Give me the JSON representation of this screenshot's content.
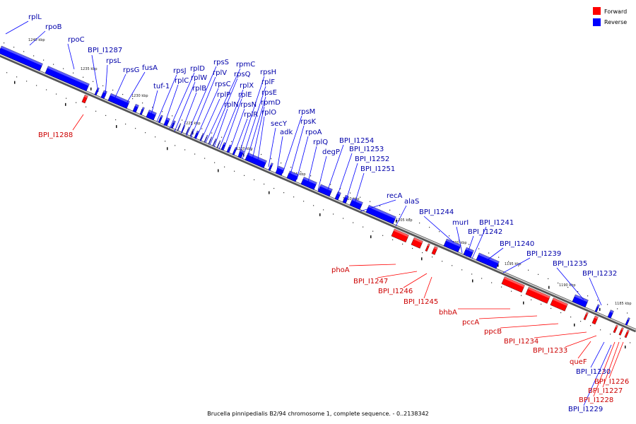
{
  "legend": {
    "forward_label": "Forward",
    "reverse_label": "Reverse",
    "forward_color": "#ff0000",
    "reverse_color": "#0000ff"
  },
  "caption": "Brucella pinnipedialis B2/94 chromosome 1, complete sequence. - 0..2138342",
  "scale_ticks": [
    "1240 kbp",
    "1235 kbp",
    "1230 kbp",
    "1225 kbp",
    "1220 kbp",
    "1215 kbp",
    "1210 kbp",
    "1205 kbp",
    "1200 kbp",
    "1195 kbp",
    "1190 kbp",
    "1185 kbp"
  ],
  "genes_reverse": [
    "rplL",
    "rpoB",
    "rpoC",
    "BPI_I1287",
    "rpsL",
    "rpsG",
    "fusA",
    "tuf-1",
    "rpsJ",
    "rplC",
    "rplD",
    "rplW",
    "rplB",
    "rpsS",
    "rplV",
    "rpsC",
    "rplP",
    "rpmC",
    "rpsQ",
    "rplN",
    "rplX",
    "rplE",
    "rpsN",
    "rplR",
    "rpsH",
    "rplF",
    "rpsE",
    "rpmD",
    "rplO",
    "secY",
    "adk",
    "rpsM",
    "rpsK",
    "rpoA",
    "rplQ",
    "degP",
    "BPI_I1254",
    "BPI_I1253",
    "BPI_I1252",
    "BPI_I1251",
    "recA",
    "alaS",
    "BPI_I1244",
    "murI",
    "BPI_I1241",
    "BPI_I1242",
    "BPI_I1240",
    "BPI_I1239",
    "BPI_I1235",
    "BPI_I1232",
    "BPI_I1230",
    "BPI_I1229"
  ],
  "genes_forward": [
    "BPI_I1288",
    "phoA",
    "BPI_I1247",
    "BPI_I1246",
    "BPI_I1245",
    "bhbA",
    "pccA",
    "ppcB",
    "BPI_I1234",
    "BPI_I1233",
    "queF",
    "BPI_I1226",
    "BPI_I1227",
    "BPI_I1228"
  ]
}
